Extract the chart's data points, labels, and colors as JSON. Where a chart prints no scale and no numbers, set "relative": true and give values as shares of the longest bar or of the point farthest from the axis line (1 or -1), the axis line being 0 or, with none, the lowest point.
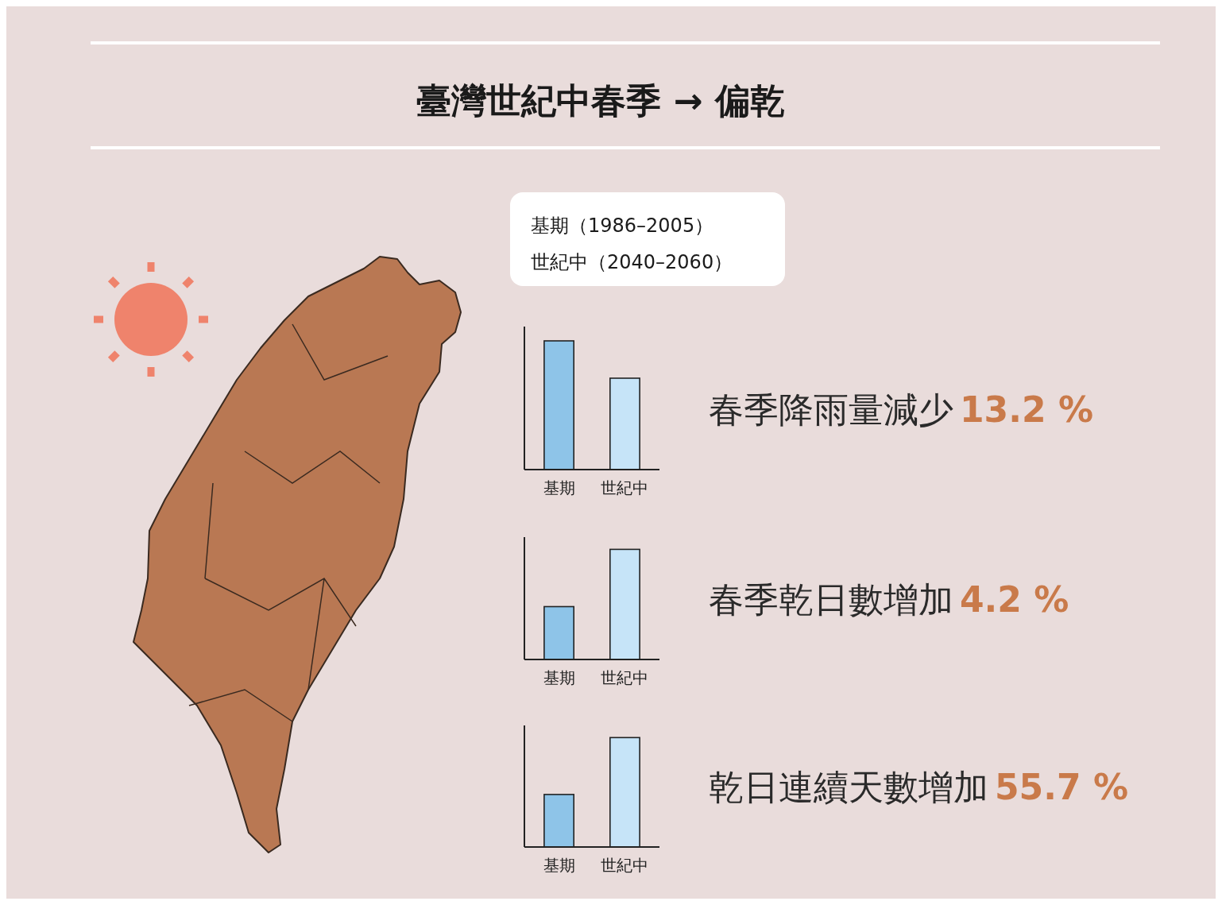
{
  "chart_data": [
    {
      "type": "bar",
      "title": "臺灣世紀中春季 → 偏乾",
      "relative": true,
      "categories": [
        "基期",
        "世紀中"
      ],
      "values": [
        1,
        0.71
      ],
      "colors": [
        "#8ec4e8",
        "#c6e4f8"
      ],
      "annotations": [
        "基期（1986–2005）",
        "世紀中（2040–2060）",
        "春季降雨量減少",
        "13.2 %"
      ]
    },
    {
      "type": "bar",
      "relative": true,
      "categories": [
        "基期",
        "世紀中"
      ],
      "values": [
        0.48,
        1
      ],
      "colors": [
        "#8ec4e8",
        "#c6e4f8"
      ],
      "annotations": [
        "春季乾日數增加",
        "4.2 %"
      ]
    },
    {
      "type": "bar",
      "relative": true,
      "categories": [
        "基期",
        "世紀中"
      ],
      "values": [
        0.48,
        1
      ],
      "colors": [
        "#8ec4e8",
        "#c6e4f8"
      ],
      "annotations": [
        "乾日連續天數增加",
        "55.7 %"
      ]
    }
  ]
}
